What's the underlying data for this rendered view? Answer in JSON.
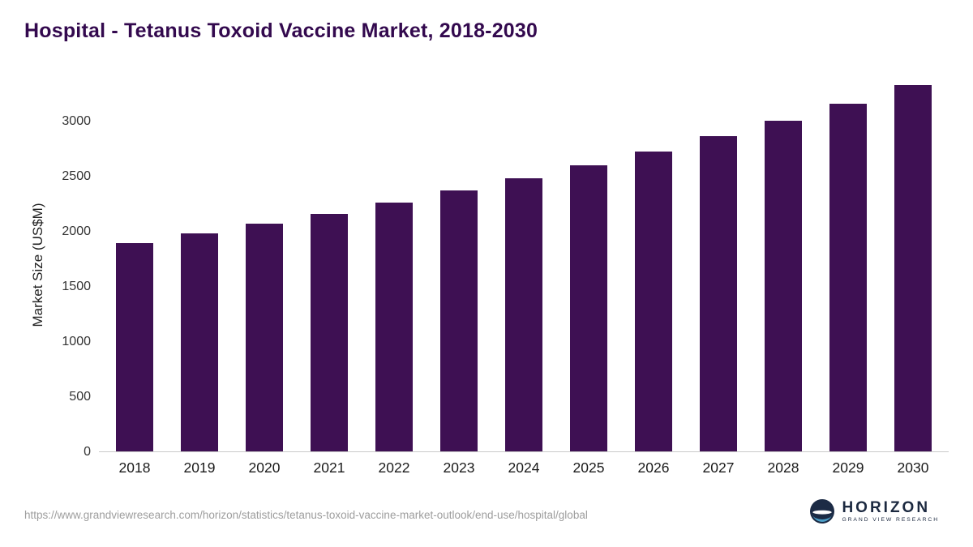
{
  "title": "Hospital - Tetanus Toxoid Vaccine Market, 2018-2030",
  "chart_data": {
    "type": "bar",
    "title": "Hospital - Tetanus Toxoid Vaccine Market, 2018-2030",
    "categories": [
      "2018",
      "2019",
      "2020",
      "2021",
      "2022",
      "2023",
      "2024",
      "2025",
      "2026",
      "2027",
      "2028",
      "2029",
      "2030"
    ],
    "values": [
      1890,
      1980,
      2070,
      2160,
      2260,
      2370,
      2480,
      2600,
      2725,
      2860,
      3005,
      3160,
      3330
    ],
    "xlabel": "",
    "ylabel": "Market Size (US$M)",
    "ylim": [
      0,
      3400
    ],
    "yticks": [
      0,
      500,
      1000,
      1500,
      2000,
      2500,
      3000
    ],
    "grid": false,
    "legend_position": "none",
    "bar_color": "#3e1053",
    "axis_line_color": "#c9c9c9"
  },
  "footer": {
    "source_url": "https://www.grandviewresearch.com/horizon/statistics/tetanus-toxoid-vaccine-market-outlook/end-use/hospital/global",
    "logo": {
      "name": "HORIZON",
      "subtitle": "GRAND VIEW RESEARCH",
      "mark_color": "#1c2b45",
      "accent_color": "#4c9fc8"
    }
  },
  "colors": {
    "title": "#33094e",
    "background": "#ffffff",
    "tick_text": "#333333",
    "source_text": "#9d9d9d"
  }
}
